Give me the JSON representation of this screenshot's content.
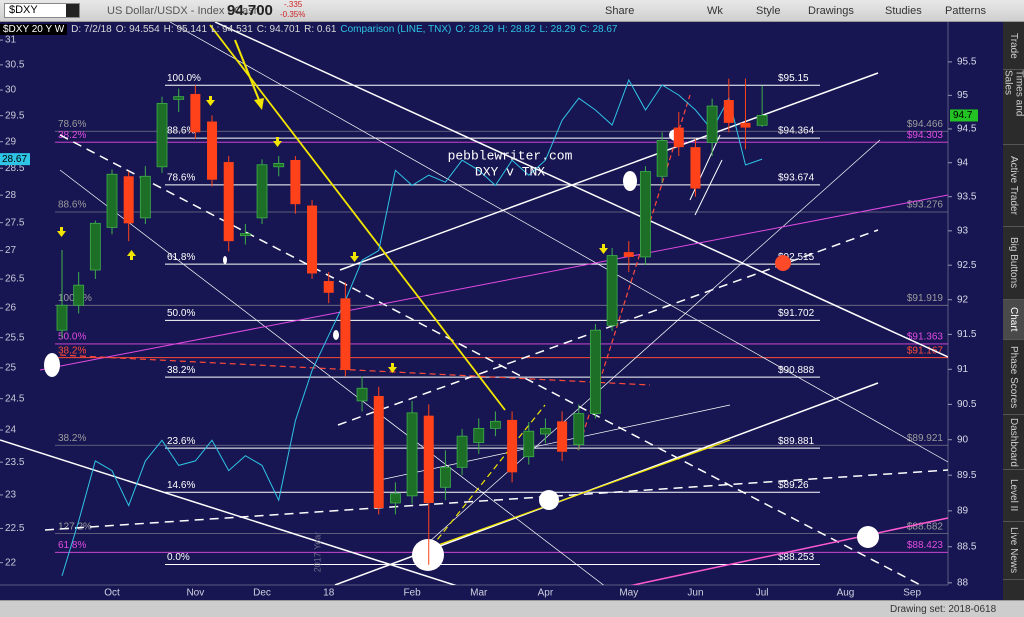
{
  "toolbar": {
    "symbol": "$DXY",
    "description": "US Dollar/USDX - Index - Cash",
    "last": "94.700",
    "change": "-.335",
    "change_pct": "-0.35%",
    "share": "Share",
    "period": "Wk",
    "style": "Style",
    "drawings": "Drawings",
    "studies": "Studies",
    "patterns": "Patterns"
  },
  "chart_data": {
    "type": "candlestick",
    "header": {
      "symbol": "$DXY 20 Y W",
      "date": "D: 7/2/18",
      "open": "O: 94.554",
      "high": "H: 95.141",
      "low": "L: 94.531",
      "close": "C: 94.701",
      "range": "R: 0.61",
      "comparison": "Comparison (LINE, TNX)",
      "comparison_open": "O: 28.29",
      "comparison_high": "H: 28.82",
      "comparison_low": "L: 28.29",
      "comparison_close": "C: 28.67"
    },
    "watermark": [
      "pebblewriter.com",
      "DXY v TNX"
    ],
    "year_marker": "2017 Year",
    "categories": [
      null,
      null,
      null,
      "Oct",
      null,
      null,
      null,
      null,
      "Nov",
      null,
      null,
      null,
      "Dec",
      null,
      null,
      null,
      "18",
      null,
      null,
      null,
      null,
      "Feb",
      null,
      null,
      null,
      "Mar",
      null,
      null,
      null,
      "Apr",
      null,
      null,
      null,
      null,
      "May",
      null,
      null,
      null,
      "Jun",
      null,
      null,
      null,
      "Jul",
      null,
      null,
      null,
      null,
      "Aug",
      null,
      null,
      null,
      "Sep",
      null
    ],
    "open": [
      91.56,
      91.92,
      92.43,
      93.05,
      93.8,
      93.19,
      93.94,
      94.94,
      95.02,
      94.61,
      94.01,
      92.93,
      93.19,
      93.94,
      94.04,
      93.37,
      92.27,
      92.02,
      90.55,
      90.62,
      89.11,
      89.21,
      90.34,
      89.33,
      89.61,
      89.96,
      90.16,
      90.28,
      89.76,
      90.08,
      90.26,
      89.93,
      90.37,
      91.63,
      92.69,
      92.62,
      93.8,
      94.52,
      94.23,
      94.3,
      94.93,
      94.59,
      94.554,
      null,
      null,
      null,
      null,
      null,
      null,
      null,
      null,
      null,
      null
    ],
    "high": [
      92.72,
      92.4,
      93.15,
      93.9,
      93.87,
      93.95,
      94.98,
      95.1,
      95.15,
      94.7,
      94.1,
      93.1,
      94.05,
      94.1,
      94.1,
      93.45,
      92.4,
      92.25,
      90.9,
      90.75,
      89.4,
      90.55,
      90.5,
      89.85,
      90.15,
      90.3,
      90.4,
      90.4,
      90.25,
      90.3,
      90.4,
      90.5,
      91.65,
      92.75,
      92.85,
      93.95,
      94.45,
      94.75,
      94.35,
      94.95,
      95.25,
      95.25,
      95.141,
      null,
      null,
      null,
      null,
      null,
      null,
      null,
      null,
      null,
      null
    ],
    "low": [
      91.45,
      91.8,
      92.3,
      92.95,
      92.85,
      93.1,
      93.85,
      94.75,
      94.35,
      93.65,
      92.7,
      92.8,
      93.1,
      93.8,
      93.25,
      92.3,
      91.95,
      90.9,
      90.4,
      88.95,
      88.95,
      89.1,
      88.25,
      89.15,
      89.5,
      89.8,
      90.05,
      89.4,
      89.65,
      89.95,
      89.7,
      89.85,
      90.3,
      91.55,
      92.4,
      92.5,
      93.7,
      94.1,
      93.5,
      94.1,
      94.45,
      94.2,
      94.531,
      null,
      null,
      null,
      null,
      null,
      null,
      null,
      null,
      null,
      null
    ],
    "close": [
      91.92,
      92.21,
      93.11,
      93.83,
      93.11,
      93.8,
      94.88,
      94.98,
      94.45,
      93.75,
      92.85,
      92.96,
      93.97,
      93.99,
      93.39,
      92.38,
      92.1,
      90.99,
      90.73,
      89.04,
      89.24,
      90.38,
      89.11,
      89.61,
      90.05,
      90.16,
      90.26,
      89.54,
      90.12,
      90.16,
      89.83,
      90.37,
      91.56,
      92.64,
      92.62,
      93.87,
      94.33,
      94.23,
      93.62,
      94.84,
      94.59,
      94.52,
      94.701,
      null,
      null,
      null,
      null,
      null,
      null,
      null,
      null,
      null,
      null
    ],
    "up_color": "#1d6e27",
    "up_outline": "#3fae4b",
    "down_color": "#ff4219",
    "log_scale": true,
    "ylim": [
      87.97,
      96.1
    ],
    "yticks": [
      88,
      88.5,
      89,
      89.5,
      90,
      90.5,
      91,
      91.5,
      92,
      92.5,
      93,
      93.5,
      94,
      94.5,
      95,
      95.5
    ],
    "y2lim": [
      21.68,
      31.37
    ],
    "y2ticks": [
      22,
      22.5,
      23,
      23.5,
      24,
      24.5,
      25,
      25.5,
      26,
      26.5,
      27,
      27.5,
      28,
      28.5,
      29,
      29.5,
      30,
      30.5,
      31
    ],
    "series": [
      {
        "color": "#2ec4e6",
        "axis": "y2",
        "values": [
          21.81,
          22.61,
          23.52,
          23.37,
          22.84,
          23.52,
          23.84,
          23.45,
          23.52,
          23.84,
          23.37,
          23.6,
          23.45,
          22.92,
          24.15,
          24.96,
          25.54,
          26.13,
          26.83,
          27.0,
          28.46,
          28.18,
          28.37,
          28.24,
          28.65,
          28.46,
          28.18,
          28.65,
          28.37,
          28.65,
          29.41,
          29.84,
          29.61,
          29.32,
          30.2,
          29.61,
          30.1,
          29.9,
          29.61,
          29.22,
          29.84,
          28.56,
          28.67,
          null,
          null,
          null,
          null,
          null,
          null,
          null,
          null,
          null,
          null
        ]
      }
    ],
    "price_marker": 94.7,
    "price_marker_color": "#22c322",
    "comparison_marker": 28.67,
    "fib_levels": [
      {
        "color": "#ffffff",
        "levels": [
          {
            "value": 95.15,
            "label": "$95.15",
            "ratio": "100.0%"
          },
          {
            "value": 94.364,
            "label": "$94.364",
            "ratio": "88.6%"
          },
          {
            "value": 93.674,
            "label": "$93.674",
            "ratio": "78.6%"
          },
          {
            "value": 92.515,
            "label": "$92.515",
            "ratio": "61.8%"
          },
          {
            "value": 91.702,
            "label": "$91.702",
            "ratio": "50.0%"
          },
          {
            "value": 90.888,
            "label": "$90.888",
            "ratio": "38.2%"
          },
          {
            "value": 89.881,
            "label": "$89.881",
            "ratio": "23.6%"
          },
          {
            "value": 89.26,
            "label": "$89.26",
            "ratio": "14.6%"
          },
          {
            "value": 88.253,
            "label": "$88.253",
            "ratio": "0.0%"
          }
        ]
      },
      {
        "color": "#9c9c9c",
        "levels": [
          {
            "value": 94.466,
            "label": "$94.466",
            "ratio": "78.6%"
          },
          {
            "value": 93.276,
            "label": "$93.276",
            "ratio": "88.6%"
          },
          {
            "value": 91.919,
            "label": "$91.919",
            "ratio": "100.0%"
          },
          {
            "value": 89.921,
            "label": "$89.921",
            "ratio": "38.2%"
          },
          {
            "value": 88.682,
            "label": "$88.682",
            "ratio": "127.2%"
          }
        ]
      },
      {
        "color": "#e24be2",
        "levels": [
          {
            "value": 94.303,
            "label": "$94.303",
            "ratio": "38.2%"
          },
          {
            "value": 91.363,
            "label": "$91.363",
            "ratio": "50.0%"
          },
          {
            "value": 88.423,
            "label": "$88.423",
            "ratio": "61.8%"
          }
        ]
      },
      {
        "color": "#ff4a3a",
        "levels": [
          {
            "value": 91.167,
            "label": "$91.167",
            "ratio": "38.2%"
          }
        ]
      }
    ]
  },
  "sidebar": [
    "Trade",
    "Times and Sales",
    "Active Trader",
    "Big Buttons",
    "Chart",
    "Phase Scores",
    "Dashboard",
    "Level II",
    "Live News"
  ],
  "status": "Drawing set: 2018-0618"
}
